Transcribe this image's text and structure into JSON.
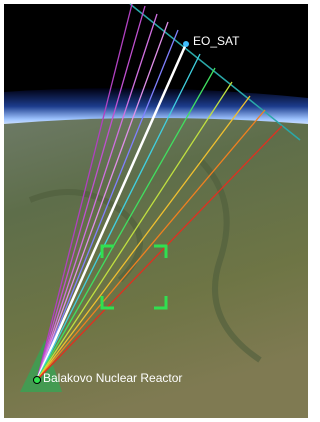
{
  "labels": {
    "satellite": "EO_SAT",
    "target": "Balakovo Nuclear Reactor"
  }
}
